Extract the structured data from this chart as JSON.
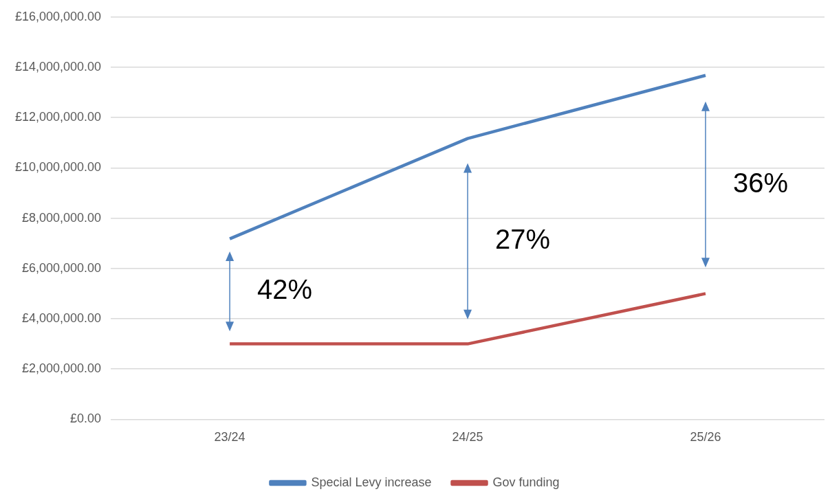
{
  "chart_data": {
    "type": "line",
    "categories": [
      "23/24",
      "24/25",
      "25/26"
    ],
    "series": [
      {
        "name": "Special Levy increase",
        "color": "#4f81bd",
        "values": [
          7180000,
          11170000,
          13680000
        ]
      },
      {
        "name": "Gov funding",
        "color": "#c0504d",
        "values": [
          3000000,
          3000000,
          5000000
        ]
      }
    ],
    "ylim": [
      0,
      16000000
    ],
    "yticks": [
      {
        "value": 0,
        "label": "£0.00"
      },
      {
        "value": 2000000,
        "label": "£2,000,000.00"
      },
      {
        "value": 4000000,
        "label": "£4,000,000.00"
      },
      {
        "value": 6000000,
        "label": "£6,000,000.00"
      },
      {
        "value": 8000000,
        "label": "£8,000,000.00"
      },
      {
        "value": 10000000,
        "label": "£10,000,000.00"
      },
      {
        "value": 12000000,
        "label": "£12,000,000.00"
      },
      {
        "value": 14000000,
        "label": "£14,000,000.00"
      },
      {
        "value": 16000000,
        "label": "£16,000,000.00"
      }
    ],
    "annotations": [
      "42%",
      "27%",
      "36%"
    ],
    "grid": "y",
    "legend": "bottom",
    "marker": "none",
    "line_style": "solid"
  }
}
